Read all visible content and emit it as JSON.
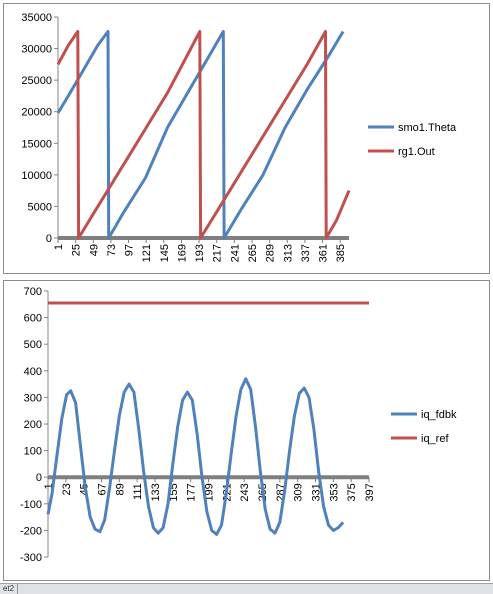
{
  "chart_data": [
    {
      "type": "line",
      "ylim": [
        0,
        35000
      ],
      "yticks": [
        0,
        5000,
        10000,
        15000,
        20000,
        25000,
        30000,
        35000
      ],
      "xlim": [
        1,
        397
      ],
      "xticks": [
        1,
        25,
        49,
        73,
        97,
        121,
        145,
        169,
        193,
        217,
        241,
        265,
        289,
        313,
        337,
        361,
        385
      ],
      "legend": "right",
      "grid": false,
      "series": [
        {
          "name": "smo1.Theta",
          "color": "#4f81bd",
          "points": [
            [
              1,
              19800
            ],
            [
              15,
              22500
            ],
            [
              35,
              26500
            ],
            [
              55,
              30500
            ],
            [
              69,
              32700
            ],
            [
              70,
              0
            ],
            [
              90,
              4000
            ],
            [
              120,
              9500
            ],
            [
              150,
              17500
            ],
            [
              180,
              23500
            ],
            [
              210,
              29500
            ],
            [
              226,
              32700
            ],
            [
              227,
              0
            ],
            [
              250,
              4500
            ],
            [
              280,
              10000
            ],
            [
              310,
              17500
            ],
            [
              340,
              23500
            ],
            [
              370,
              29000
            ],
            [
              389,
              32700
            ]
          ]
        },
        {
          "name": "rg1.Out",
          "color": "#c0504d",
          "points": [
            [
              1,
              27500
            ],
            [
              15,
              30500
            ],
            [
              28,
              32700
            ],
            [
              29,
              0
            ],
            [
              50,
              4000
            ],
            [
              100,
              13500
            ],
            [
              150,
              23000
            ],
            [
              194,
              32700
            ],
            [
              195,
              0
            ],
            [
              240,
              8500
            ],
            [
              290,
              18000
            ],
            [
              340,
              27500
            ],
            [
              365,
              32700
            ],
            [
              366,
              0
            ],
            [
              380,
              2800
            ],
            [
              397,
              7500
            ]
          ]
        }
      ]
    },
    {
      "type": "line",
      "ylim": [
        -300,
        700
      ],
      "yticks": [
        -300,
        -200,
        -100,
        0,
        100,
        200,
        300,
        400,
        500,
        600,
        700
      ],
      "xlim": [
        1,
        397
      ],
      "xticks": [
        1,
        23,
        45,
        67,
        89,
        111,
        133,
        155,
        177,
        199,
        221,
        243,
        265,
        287,
        309,
        331,
        353,
        375,
        397
      ],
      "legend": "right",
      "grid": false,
      "series": [
        {
          "name": "iq_fdbk",
          "color": "#4f81bd",
          "points": [
            [
              1,
              -140
            ],
            [
              6,
              -60
            ],
            [
              12,
              80
            ],
            [
              18,
              220
            ],
            [
              24,
              310
            ],
            [
              29,
              325
            ],
            [
              35,
              280
            ],
            [
              41,
              120
            ],
            [
              47,
              -40
            ],
            [
              53,
              -150
            ],
            [
              59,
              -195
            ],
            [
              65,
              -205
            ],
            [
              71,
              -160
            ],
            [
              77,
              -40
            ],
            [
              83,
              100
            ],
            [
              89,
              230
            ],
            [
              95,
              320
            ],
            [
              101,
              350
            ],
            [
              107,
              320
            ],
            [
              113,
              180
            ],
            [
              119,
              20
            ],
            [
              125,
              -110
            ],
            [
              131,
              -190
            ],
            [
              137,
              -210
            ],
            [
              143,
              -190
            ],
            [
              149,
              -100
            ],
            [
              155,
              50
            ],
            [
              161,
              190
            ],
            [
              167,
              290
            ],
            [
              173,
              320
            ],
            [
              179,
              290
            ],
            [
              185,
              160
            ],
            [
              191,
              0
            ],
            [
              197,
              -130
            ],
            [
              203,
              -200
            ],
            [
              209,
              -215
            ],
            [
              215,
              -180
            ],
            [
              221,
              -60
            ],
            [
              227,
              90
            ],
            [
              233,
              230
            ],
            [
              239,
              330
            ],
            [
              245,
              370
            ],
            [
              251,
              330
            ],
            [
              257,
              190
            ],
            [
              263,
              20
            ],
            [
              269,
              -120
            ],
            [
              275,
              -195
            ],
            [
              281,
              -210
            ],
            [
              287,
              -170
            ],
            [
              293,
              -50
            ],
            [
              299,
              100
            ],
            [
              305,
              230
            ],
            [
              311,
              315
            ],
            [
              317,
              335
            ],
            [
              323,
              300
            ],
            [
              329,
              180
            ],
            [
              335,
              20
            ],
            [
              341,
              -110
            ],
            [
              347,
              -180
            ],
            [
              353,
              -200
            ],
            [
              359,
              -190
            ],
            [
              365,
              -170
            ]
          ]
        },
        {
          "name": "iq_ref",
          "color": "#c0504d",
          "points": [
            [
              1,
              655
            ],
            [
              397,
              655
            ]
          ]
        }
      ]
    }
  ],
  "sheet_tabs": [
    "et2",
    "",
    ""
  ]
}
